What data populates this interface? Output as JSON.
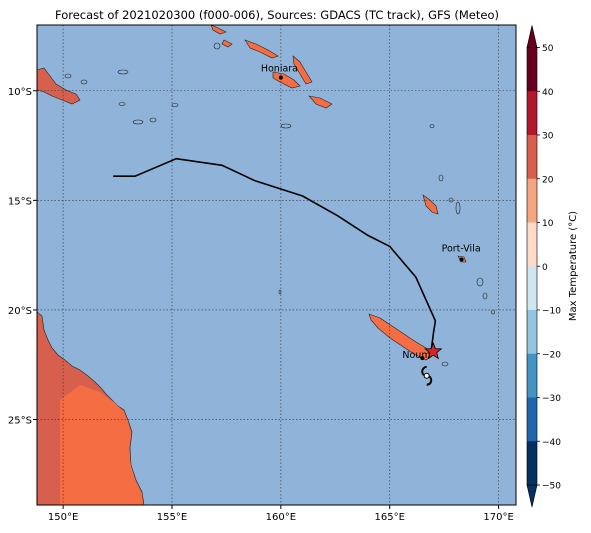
{
  "title": "Forecast of 2021020300 (f000-006), Sources: GDACS (TC track), GFS (Meteo)",
  "map": {
    "lon_range": [
      148.8,
      170.8
    ],
    "lat_range": [
      -28.9,
      -7.0
    ],
    "lon_ticks": [
      "150°E",
      "155°E",
      "160°E",
      "165°E",
      "170°E"
    ],
    "lat_ticks": [
      "10°S",
      "15°S",
      "20°S",
      "25°S"
    ],
    "ocean_color": "#8fb3d9",
    "gridlines": true
  },
  "places": [
    {
      "name": "Honiara",
      "lon": 160.0,
      "lat": -9.4
    },
    {
      "name": "Port-Vila",
      "lon": 168.3,
      "lat": -17.7
    },
    {
      "name": "Nouméa",
      "lon": 166.5,
      "lat": -22.2
    }
  ],
  "places_label": {
    "nou": "Noum"
  },
  "tc_track": {
    "color": "#000000",
    "points": [
      [
        152.3,
        -13.9
      ],
      [
        153.3,
        -13.9
      ],
      [
        155.2,
        -13.1
      ],
      [
        157.3,
        -13.4
      ],
      [
        158.8,
        -14.1
      ],
      [
        161.0,
        -14.8
      ],
      [
        162.6,
        -15.7
      ],
      [
        164.0,
        -16.6
      ],
      [
        165.0,
        -17.1
      ],
      [
        166.2,
        -18.5
      ],
      [
        167.1,
        -20.5
      ],
      [
        167.0,
        -21.1
      ],
      [
        166.9,
        -21.9
      ]
    ],
    "current_position": {
      "lon": 167.0,
      "lat": -21.9,
      "marker": "star",
      "color": "#d62728"
    },
    "cyclone_symbol": {
      "lon": 166.7,
      "lat": -23.0,
      "icon": "cyclone-icon"
    }
  },
  "colorbar": {
    "label": "Max Temperature (°C)",
    "ticks": [
      "50",
      "40",
      "30",
      "20",
      "10",
      "0",
      "−10",
      "−20",
      "−30",
      "−40",
      "−50"
    ],
    "colors": [
      "#67001f",
      "#b2182b",
      "#d6604d",
      "#f4a582",
      "#fddbc7",
      "#f7f7f7",
      "#d1e5f0",
      "#92c5de",
      "#4393c3",
      "#2166ac",
      "#053061"
    ],
    "over_color": "#67001f",
    "under_color": "#053061"
  },
  "land_colors": {
    "hot": "#d6604d",
    "warm": "#f46d43"
  }
}
